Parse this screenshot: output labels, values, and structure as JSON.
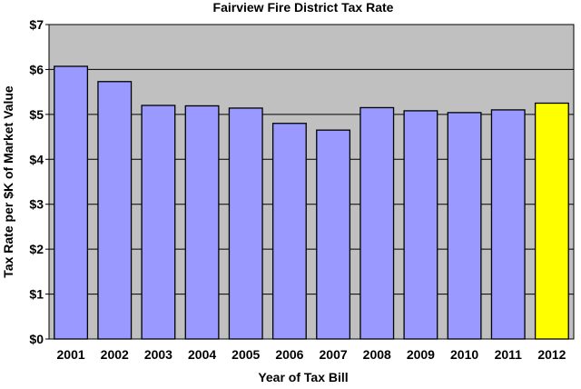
{
  "chart_data": {
    "type": "bar",
    "title": "Fairview Fire District Tax Rate",
    "xlabel": "Year of Tax Bill",
    "ylabel": "Tax Rate per $K of Market Value",
    "categories": [
      "2001",
      "2002",
      "2003",
      "2004",
      "2005",
      "2006",
      "2007",
      "2008",
      "2009",
      "2010",
      "2011",
      "2012"
    ],
    "values": [
      6.07,
      5.73,
      5.2,
      5.19,
      5.14,
      4.8,
      4.65,
      5.15,
      5.08,
      5.04,
      5.1,
      5.25
    ],
    "ylim": [
      0,
      7
    ],
    "yticks": [
      0,
      1,
      2,
      3,
      4,
      5,
      6,
      7
    ],
    "ytick_labels": [
      "$0",
      "$1",
      "$2",
      "$3",
      "$4",
      "$5",
      "$6",
      "$7"
    ],
    "grid": true,
    "colors": {
      "plot_background": "#c0c0c0",
      "bar": "#9999ff",
      "highlight_bar": "#ffff00",
      "highlight_category": "2012",
      "outline": "#000000"
    }
  }
}
